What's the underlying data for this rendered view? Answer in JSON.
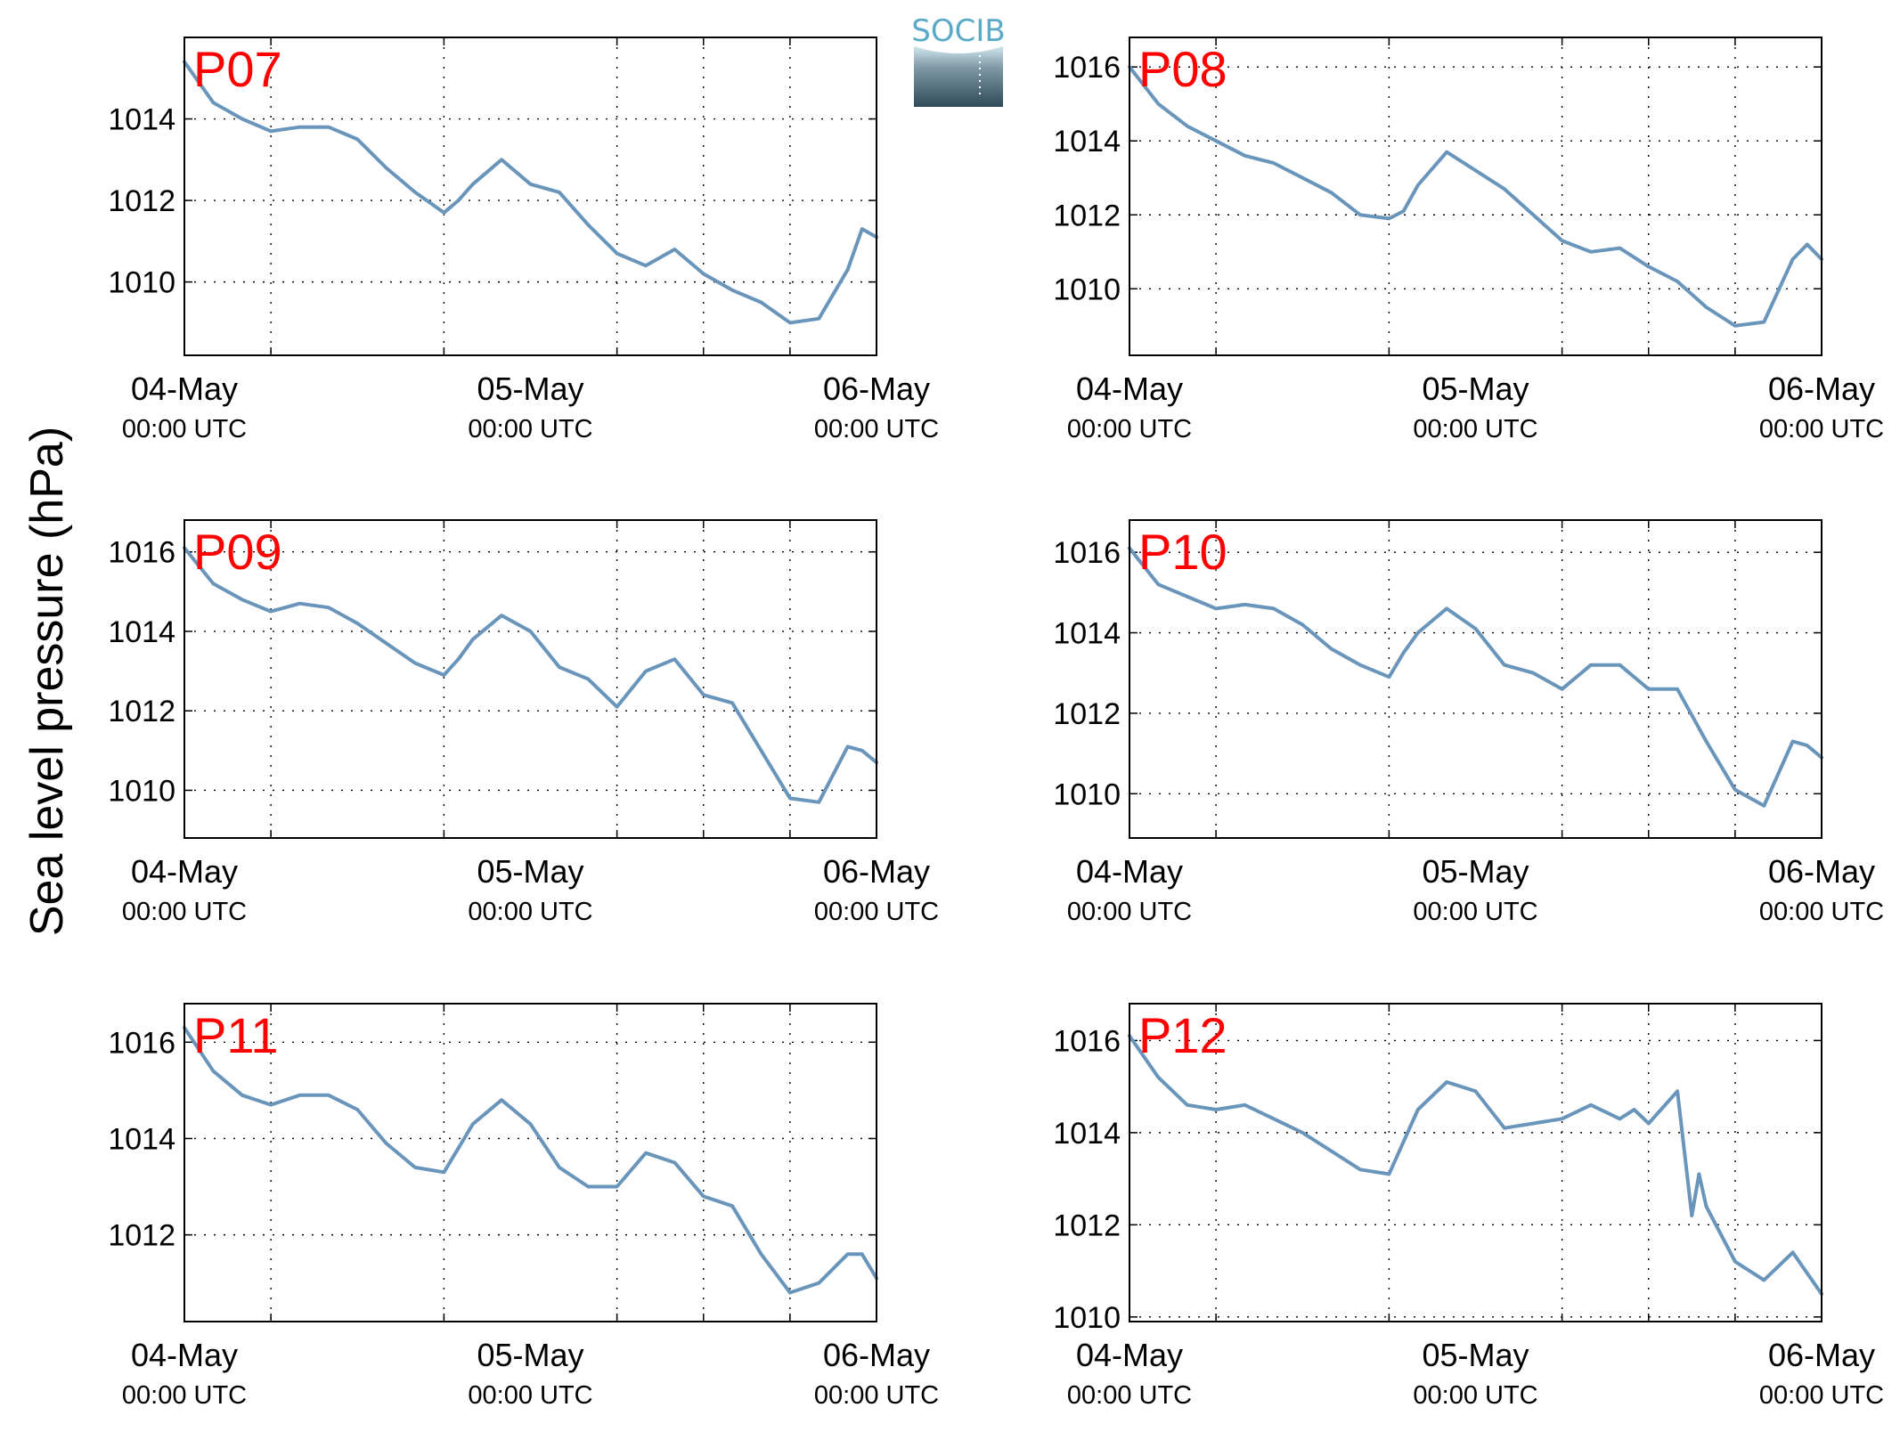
{
  "figure": {
    "ylabel": "Sea level pressure (hPa)",
    "logo_text": "SOCIB",
    "x_ticks": [
      {
        "date": "04-May",
        "time": "00:00 UTC"
      },
      {
        "date": "05-May",
        "time": "00:00 UTC"
      },
      {
        "date": "06-May",
        "time": "00:00 UTC"
      }
    ],
    "line_color": "#6a95bb",
    "label_color": "#ff0000"
  },
  "chart_data": [
    {
      "type": "line",
      "title": "P07",
      "xlim": [
        "2015-05-04T00:00",
        "2015-05-06T00:00"
      ],
      "ylim": [
        1008.2,
        1016.0
      ],
      "yticks": [
        1010,
        1012,
        1014
      ],
      "xgrid": [
        "2015-05-04T06:00",
        "2015-05-04T18:00",
        "2015-05-05T06:00",
        "2015-05-05T12:00",
        "2015-05-05T18:00"
      ],
      "x": [
        "2015-05-04T00:00",
        "2015-05-04T02:00",
        "2015-05-04T04:00",
        "2015-05-04T06:00",
        "2015-05-04T08:00",
        "2015-05-04T10:00",
        "2015-05-04T12:00",
        "2015-05-04T14:00",
        "2015-05-04T16:00",
        "2015-05-04T18:00",
        "2015-05-04T19:00",
        "2015-05-04T20:00",
        "2015-05-04T22:00",
        "2015-05-05T00:00",
        "2015-05-05T02:00",
        "2015-05-05T04:00",
        "2015-05-05T06:00",
        "2015-05-05T08:00",
        "2015-05-05T10:00",
        "2015-05-05T12:00",
        "2015-05-05T14:00",
        "2015-05-05T16:00",
        "2015-05-05T18:00",
        "2015-05-05T20:00",
        "2015-05-05T22:00",
        "2015-05-05T23:00",
        "2015-05-06T00:00"
      ],
      "series": [
        {
          "values": [
            1015.4,
            1014.4,
            1014.0,
            1013.7,
            1013.8,
            1013.8,
            1013.5,
            1012.8,
            1012.2,
            1011.7,
            1012.0,
            1012.4,
            1013.0,
            1012.4,
            1012.2,
            1011.4,
            1010.7,
            1010.4,
            1010.8,
            1010.2,
            1009.8,
            1009.5,
            1009.0,
            1009.1,
            1010.3,
            1011.3,
            1011.1
          ]
        }
      ]
    },
    {
      "type": "line",
      "title": "P08",
      "xlim": [
        "2015-05-04T00:00",
        "2015-05-06T00:00"
      ],
      "ylim": [
        1008.2,
        1016.8
      ],
      "yticks": [
        1010,
        1012,
        1014,
        1016
      ],
      "xgrid": [
        "2015-05-04T06:00",
        "2015-05-04T18:00",
        "2015-05-05T06:00",
        "2015-05-05T12:00",
        "2015-05-05T18:00"
      ],
      "x": [
        "2015-05-04T00:00",
        "2015-05-04T02:00",
        "2015-05-04T04:00",
        "2015-05-04T06:00",
        "2015-05-04T08:00",
        "2015-05-04T10:00",
        "2015-05-04T12:00",
        "2015-05-04T14:00",
        "2015-05-04T16:00",
        "2015-05-04T18:00",
        "2015-05-04T19:00",
        "2015-05-04T20:00",
        "2015-05-04T22:00",
        "2015-05-05T00:00",
        "2015-05-05T02:00",
        "2015-05-05T04:00",
        "2015-05-05T06:00",
        "2015-05-05T08:00",
        "2015-05-05T10:00",
        "2015-05-05T12:00",
        "2015-05-05T14:00",
        "2015-05-05T16:00",
        "2015-05-05T18:00",
        "2015-05-05T20:00",
        "2015-05-05T22:00",
        "2015-05-05T23:00",
        "2015-05-06T00:00"
      ],
      "series": [
        {
          "values": [
            1016.0,
            1015.0,
            1014.4,
            1014.0,
            1013.6,
            1013.4,
            1013.0,
            1012.6,
            1012.0,
            1011.9,
            1012.1,
            1012.8,
            1013.7,
            1013.2,
            1012.7,
            1012.0,
            1011.3,
            1011.0,
            1011.1,
            1010.6,
            1010.2,
            1009.5,
            1009.0,
            1009.1,
            1010.8,
            1011.2,
            1010.8
          ]
        }
      ]
    },
    {
      "type": "line",
      "title": "P09",
      "xlim": [
        "2015-05-04T00:00",
        "2015-05-06T00:00"
      ],
      "ylim": [
        1008.8,
        1016.8
      ],
      "yticks": [
        1010,
        1012,
        1014,
        1016
      ],
      "xgrid": [
        "2015-05-04T06:00",
        "2015-05-04T18:00",
        "2015-05-05T06:00",
        "2015-05-05T12:00",
        "2015-05-05T18:00"
      ],
      "x": [
        "2015-05-04T00:00",
        "2015-05-04T02:00",
        "2015-05-04T04:00",
        "2015-05-04T06:00",
        "2015-05-04T08:00",
        "2015-05-04T10:00",
        "2015-05-04T12:00",
        "2015-05-04T14:00",
        "2015-05-04T16:00",
        "2015-05-04T18:00",
        "2015-05-04T19:00",
        "2015-05-04T20:00",
        "2015-05-04T22:00",
        "2015-05-05T00:00",
        "2015-05-05T02:00",
        "2015-05-05T04:00",
        "2015-05-05T06:00",
        "2015-05-05T08:00",
        "2015-05-05T10:00",
        "2015-05-05T12:00",
        "2015-05-05T14:00",
        "2015-05-05T16:00",
        "2015-05-05T18:00",
        "2015-05-05T20:00",
        "2015-05-05T22:00",
        "2015-05-05T23:00",
        "2015-05-06T00:00"
      ],
      "series": [
        {
          "values": [
            1016.1,
            1015.2,
            1014.8,
            1014.5,
            1014.7,
            1014.6,
            1014.2,
            1013.7,
            1013.2,
            1012.9,
            1013.3,
            1013.8,
            1014.4,
            1014.0,
            1013.1,
            1012.8,
            1012.1,
            1013.0,
            1013.3,
            1012.4,
            1012.2,
            1011.0,
            1009.8,
            1009.7,
            1011.1,
            1011.0,
            1010.7
          ]
        }
      ]
    },
    {
      "type": "line",
      "title": "P10",
      "xlim": [
        "2015-05-04T00:00",
        "2015-05-06T00:00"
      ],
      "ylim": [
        1008.9,
        1016.8
      ],
      "yticks": [
        1010,
        1012,
        1014,
        1016
      ],
      "xgrid": [
        "2015-05-04T06:00",
        "2015-05-04T18:00",
        "2015-05-05T06:00",
        "2015-05-05T12:00",
        "2015-05-05T18:00"
      ],
      "x": [
        "2015-05-04T00:00",
        "2015-05-04T02:00",
        "2015-05-04T04:00",
        "2015-05-04T06:00",
        "2015-05-04T08:00",
        "2015-05-04T10:00",
        "2015-05-04T12:00",
        "2015-05-04T14:00",
        "2015-05-04T16:00",
        "2015-05-04T18:00",
        "2015-05-04T19:00",
        "2015-05-04T20:00",
        "2015-05-04T22:00",
        "2015-05-05T00:00",
        "2015-05-05T02:00",
        "2015-05-05T04:00",
        "2015-05-05T06:00",
        "2015-05-05T08:00",
        "2015-05-05T10:00",
        "2015-05-05T12:00",
        "2015-05-05T14:00",
        "2015-05-05T16:00",
        "2015-05-05T18:00",
        "2015-05-05T20:00",
        "2015-05-05T22:00",
        "2015-05-05T23:00",
        "2015-05-06T00:00"
      ],
      "series": [
        {
          "values": [
            1016.1,
            1015.2,
            1014.9,
            1014.6,
            1014.7,
            1014.6,
            1014.2,
            1013.6,
            1013.2,
            1012.9,
            1013.5,
            1014.0,
            1014.6,
            1014.1,
            1013.2,
            1013.0,
            1012.6,
            1013.2,
            1013.2,
            1012.6,
            1012.6,
            1011.3,
            1010.1,
            1009.7,
            1011.3,
            1011.2,
            1010.9
          ]
        }
      ]
    },
    {
      "type": "line",
      "title": "P11",
      "xlim": [
        "2015-05-04T00:00",
        "2015-05-06T00:00"
      ],
      "ylim": [
        1010.2,
        1016.8
      ],
      "yticks": [
        1012,
        1014,
        1016
      ],
      "xgrid": [
        "2015-05-04T06:00",
        "2015-05-04T18:00",
        "2015-05-05T06:00",
        "2015-05-05T12:00",
        "2015-05-05T18:00"
      ],
      "x": [
        "2015-05-04T00:00",
        "2015-05-04T02:00",
        "2015-05-04T04:00",
        "2015-05-04T06:00",
        "2015-05-04T08:00",
        "2015-05-04T10:00",
        "2015-05-04T12:00",
        "2015-05-04T14:00",
        "2015-05-04T16:00",
        "2015-05-04T18:00",
        "2015-05-04T19:00",
        "2015-05-04T20:00",
        "2015-05-04T22:00",
        "2015-05-05T00:00",
        "2015-05-05T02:00",
        "2015-05-05T04:00",
        "2015-05-05T06:00",
        "2015-05-05T08:00",
        "2015-05-05T10:00",
        "2015-05-05T12:00",
        "2015-05-05T14:00",
        "2015-05-05T16:00",
        "2015-05-05T18:00",
        "2015-05-05T20:00",
        "2015-05-05T22:00",
        "2015-05-05T23:00",
        "2015-05-06T00:00"
      ],
      "series": [
        {
          "values": [
            1016.3,
            1015.4,
            1014.9,
            1014.7,
            1014.9,
            1014.9,
            1014.6,
            1013.9,
            1013.4,
            1013.3,
            1013.8,
            1014.3,
            1014.8,
            1014.3,
            1013.4,
            1013.0,
            1013.0,
            1013.7,
            1013.5,
            1012.8,
            1012.6,
            1011.6,
            1010.8,
            1011.0,
            1011.6,
            1011.6,
            1011.1
          ]
        }
      ]
    },
    {
      "type": "line",
      "title": "P12",
      "xlim": [
        "2015-05-04T00:00",
        "2015-05-06T00:00"
      ],
      "ylim": [
        1009.9,
        1016.8
      ],
      "yticks": [
        1010,
        1012,
        1014,
        1016
      ],
      "xgrid": [
        "2015-05-04T06:00",
        "2015-05-04T18:00",
        "2015-05-05T06:00",
        "2015-05-05T12:00",
        "2015-05-05T18:00"
      ],
      "x": [
        "2015-05-04T00:00",
        "2015-05-04T02:00",
        "2015-05-04T04:00",
        "2015-05-04T06:00",
        "2015-05-04T08:00",
        "2015-05-04T10:00",
        "2015-05-04T12:00",
        "2015-05-04T14:00",
        "2015-05-04T16:00",
        "2015-05-04T18:00",
        "2015-05-04T19:00",
        "2015-05-04T20:00",
        "2015-05-04T22:00",
        "2015-05-05T00:00",
        "2015-05-05T02:00",
        "2015-05-05T04:00",
        "2015-05-05T06:00",
        "2015-05-05T08:00",
        "2015-05-05T10:00",
        "2015-05-05T11:00",
        "2015-05-05T12:00",
        "2015-05-05T14:00",
        "2015-05-05T15:00",
        "2015-05-05T15:30",
        "2015-05-05T16:00",
        "2015-05-05T18:00",
        "2015-05-05T20:00",
        "2015-05-05T22:00",
        "2015-05-06T00:00"
      ],
      "series": [
        {
          "values": [
            1016.1,
            1015.2,
            1014.6,
            1014.5,
            1014.6,
            1014.3,
            1014.0,
            1013.6,
            1013.2,
            1013.1,
            1013.8,
            1014.5,
            1015.1,
            1014.9,
            1014.1,
            1014.2,
            1014.3,
            1014.6,
            1014.3,
            1014.5,
            1014.2,
            1014.9,
            1012.2,
            1013.1,
            1012.4,
            1011.2,
            1010.8,
            1011.4,
            1010.5
          ]
        }
      ]
    }
  ]
}
